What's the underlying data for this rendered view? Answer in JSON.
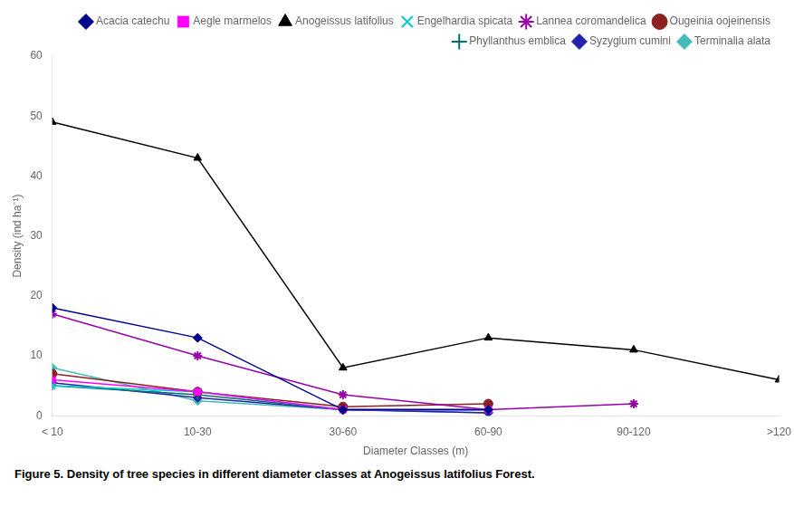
{
  "chart_data": {
    "type": "line",
    "caption": "Figure 5. Density of tree species in different diameter classes at Anogeissus latifolius Forest.",
    "xlabel": "Diameter Classes (m)",
    "ylabel": "Density (ind ha⁻¹)",
    "categories": [
      "< 10",
      "10-30",
      "30-60",
      "60-90",
      "90-120",
      ">120"
    ],
    "series": [
      {
        "name": "Acacia catechu",
        "values": [
          18,
          13,
          1,
          1,
          null,
          null
        ],
        "color": "#00008B",
        "marker": "diamond"
      },
      {
        "name": "Aegle marmelos",
        "values": [
          6,
          4,
          1,
          1,
          null,
          null
        ],
        "color": "#FF00FF",
        "marker": "square"
      },
      {
        "name": "Anogeissus latifolius",
        "values": [
          49,
          43,
          8,
          13,
          11,
          6
        ],
        "color": "#000000",
        "marker": "triangle"
      },
      {
        "name": "Engelhardia spicata",
        "values": [
          5,
          4,
          1,
          1,
          null,
          null
        ],
        "color": "#00CCCC",
        "marker": "x"
      },
      {
        "name": "Lannea coromandelica",
        "values": [
          17,
          10,
          3.5,
          1,
          2,
          null
        ],
        "color": "#9900AA",
        "marker": "star"
      },
      {
        "name": "Ougeinia oojeinensis",
        "values": [
          7,
          4,
          1.5,
          2,
          null,
          null
        ],
        "color": "#8B2020",
        "marker": "circle"
      },
      {
        "name": "Phyllanthus emblica",
        "values": [
          5,
          3.5,
          1,
          1,
          null,
          null
        ],
        "color": "#007070",
        "marker": "plus"
      },
      {
        "name": "Syzygium cumini",
        "values": [
          5.5,
          3,
          1,
          0.5,
          null,
          null
        ],
        "color": "#2222AA",
        "marker": "diamond"
      },
      {
        "name": "Terminalia alata",
        "values": [
          8,
          2.5,
          1,
          0.5,
          null,
          null
        ],
        "color": "#44BBBB",
        "marker": "diamond"
      }
    ],
    "ylim": [
      0,
      60
    ],
    "yticks": [
      0,
      10,
      20,
      30,
      40,
      50,
      60
    ],
    "grid": false,
    "legend": "upper right"
  }
}
